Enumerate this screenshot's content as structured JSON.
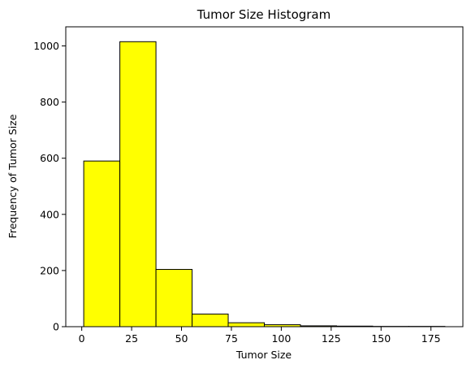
{
  "chart_data": {
    "type": "bar",
    "title": "Tumor Size Histogram",
    "xlabel": "Tumor Size",
    "ylabel": "Frequency of Tumor Size",
    "bar_color": "#ffff00",
    "edge_color": "#000000",
    "bin_edges": [
      1,
      19.1,
      37.2,
      55.3,
      73.4,
      91.5,
      109.6,
      127.7,
      145.8,
      163.9,
      182
    ],
    "values": [
      590,
      1015,
      204,
      45,
      14,
      7,
      3,
      2,
      1,
      1
    ],
    "xlim": [
      -8,
      191
    ],
    "ylim": [
      0,
      1068
    ],
    "x_ticks": [
      0,
      25,
      50,
      75,
      100,
      125,
      150,
      175
    ],
    "y_ticks": [
      0,
      200,
      400,
      600,
      800,
      1000
    ],
    "grid": false,
    "legend": "none"
  }
}
